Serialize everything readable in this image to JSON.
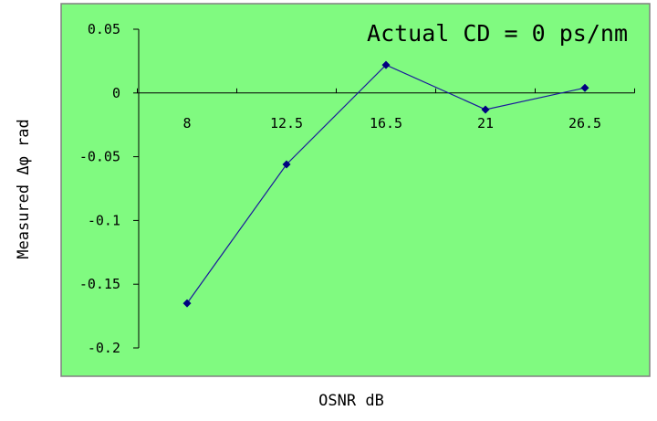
{
  "chart_data": {
    "type": "line",
    "categories": [
      "8",
      "12.5",
      "16.5",
      "21",
      "26.5"
    ],
    "series": [
      {
        "values": [
          -0.165,
          -0.056,
          0.022,
          -0.013,
          0.004
        ]
      }
    ],
    "xlabel": "OSNR  dB",
    "ylabel": "Measured  Δφ   rad",
    "yticks": [
      "0.05",
      "0",
      "-0.05",
      "-0.1",
      "-0.15",
      "-0.2"
    ],
    "ylim": [
      -0.2,
      0.05
    ],
    "annotation": "Actual CD = 0 ps/nm",
    "grid": false,
    "plot_background": "#80fa80",
    "line_color": "#1a1a9c",
    "marker_color": "#000080"
  }
}
